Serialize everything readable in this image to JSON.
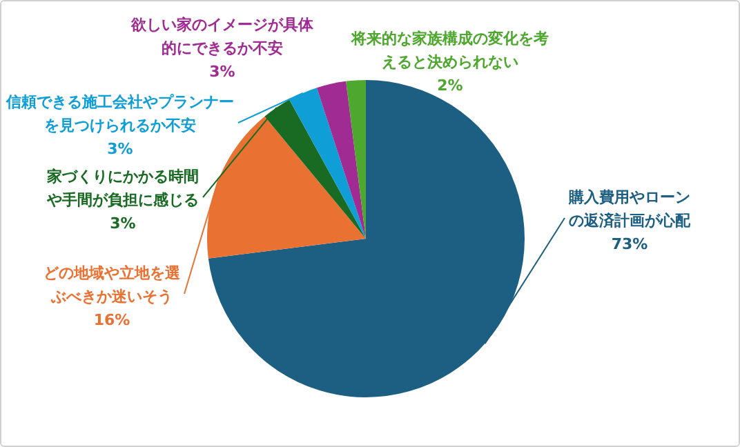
{
  "chart_data": {
    "type": "pie",
    "categories": [
      "購入費用やローンの返済計画が心配",
      "どの地域や立地を選ぶべきか迷いそう",
      "家づくりにかかる時間や手間が負担に感じる",
      "信頼できる施工会社やプランナーを見つけられるか不安",
      "欲しい家のイメージが具体的にできるか不安",
      "将来的な家族構成の変化を考えると決められない"
    ],
    "values": [
      73,
      16,
      3,
      3,
      3,
      2
    ],
    "value_labels": [
      "73%",
      "16%",
      "3%",
      "3%",
      "3%",
      "2%"
    ],
    "colors": [
      "#1d5f82",
      "#e97132",
      "#196b24",
      "#0f9ed5",
      "#a02b93",
      "#4ea72e"
    ],
    "legend": false
  }
}
